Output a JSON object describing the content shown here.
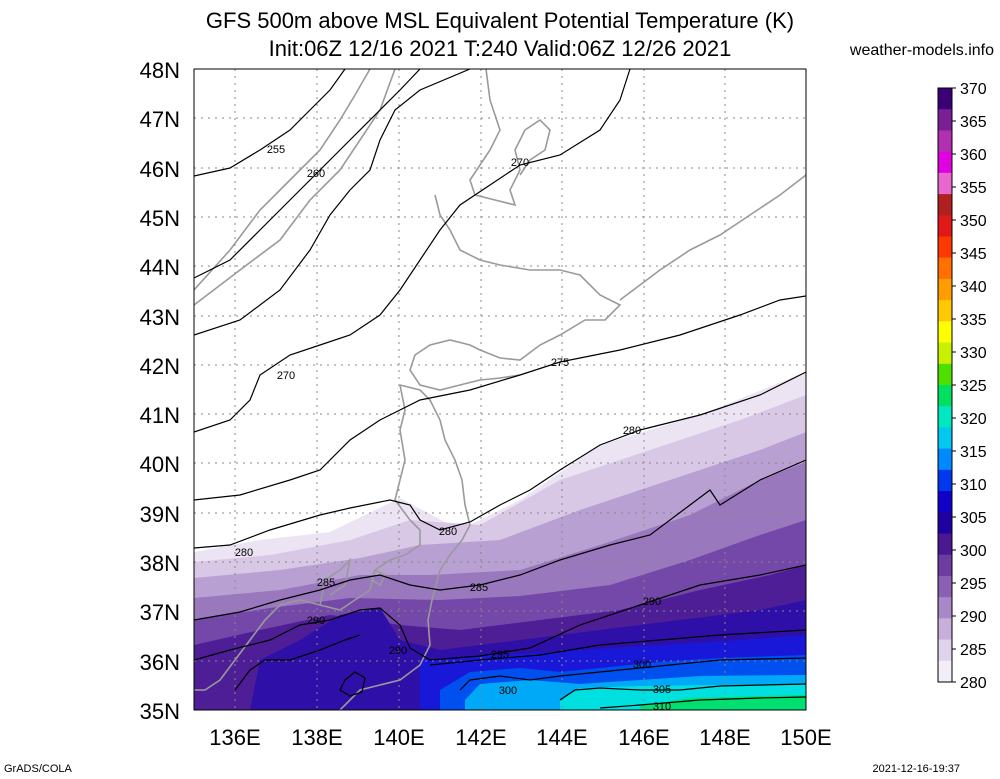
{
  "title_line1": "GFS 500m above MSL Equivalent Potential Temperature (K)",
  "title_line2": "Init:06Z 12/16 2021 T:240 Valid:06Z 12/26 2021",
  "site": "weather-models.info",
  "lat_labels": [
    "48N",
    "47N",
    "46N",
    "45N",
    "44N",
    "43N",
    "42N",
    "41N",
    "40N",
    "39N",
    "38N",
    "37N",
    "36N",
    "35N"
  ],
  "lon_labels": [
    "136E",
    "138E",
    "140E",
    "142E",
    "144E",
    "146E",
    "148E",
    "150E"
  ],
  "colorbar": {
    "labels": [
      "370",
      "365",
      "360",
      "355",
      "350",
      "345",
      "340",
      "335",
      "330",
      "325",
      "320",
      "315",
      "310",
      "305",
      "300",
      "295",
      "290",
      "285",
      "280"
    ],
    "colors": [
      "#3a0078",
      "#7a1e96",
      "#b030b0",
      "#e000e0",
      "#e868d0",
      "#b02020",
      "#e01818",
      "#ff3800",
      "#ff7000",
      "#ff9c00",
      "#ffc800",
      "#ffff00",
      "#c8f000",
      "#50e000",
      "#00e060",
      "#00e8c0",
      "#00c8f0",
      "#0088ff",
      "#0038f0",
      "#1000c8",
      "#2000a0",
      "#4a1890",
      "#6c3ca0",
      "#8a60b4",
      "#a888c8",
      "#c6b0da",
      "#e0d4ec",
      "#f2eef8"
    ]
  },
  "contour_labels": [
    "255",
    "260",
    "270",
    "270",
    "275",
    "280",
    "280",
    "280",
    "285",
    "285",
    "290",
    "290",
    "290",
    "295",
    "300",
    "300",
    "305",
    "310"
  ],
  "footer_left": "GrADS/COLA",
  "footer_right": "2021-12-16-19:37"
}
